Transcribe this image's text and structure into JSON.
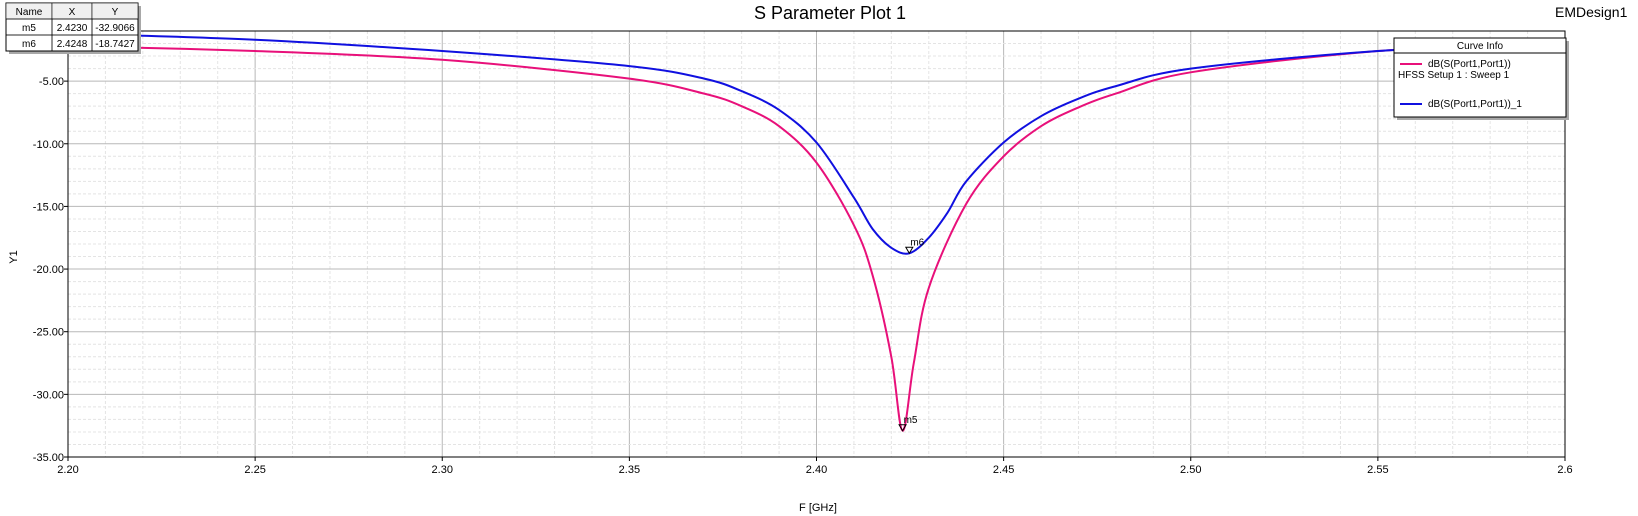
{
  "window": {
    "design_name": "EMDesign1"
  },
  "chart_data": {
    "type": "line",
    "title": "S Parameter Plot 1",
    "xlabel": "F [GHz]",
    "ylabel": "Y1",
    "xlim": [
      2.2,
      2.6
    ],
    "ylim": [
      -35.0,
      -1.0
    ],
    "x_ticks": [
      "2.20",
      "2.25",
      "2.30",
      "2.35",
      "2.40",
      "2.45",
      "2.50",
      "2.55",
      "2.6"
    ],
    "y_ticks": [
      "-5.00",
      "-10.00",
      "-15.00",
      "-20.00",
      "-25.00",
      "-30.00",
      "-35.00"
    ],
    "grid": true,
    "legend": {
      "placement": "top-right",
      "title": "Curve Info",
      "entries": [
        {
          "label": "dB(S(Port1,Port1))",
          "sublabel": "HFSS Setup 1 : Sweep 1",
          "color": "#e8107a"
        },
        {
          "label": "dB(S(Port1,Port1))_1",
          "color": "#1010e0"
        }
      ]
    },
    "series": [
      {
        "name": "dB(S(Port1,Port1))",
        "color": "#e8107a",
        "x": [
          2.2,
          2.25,
          2.3,
          2.35,
          2.37,
          2.38,
          2.39,
          2.4,
          2.41,
          2.415,
          2.42,
          2.423,
          2.426,
          2.43,
          2.44,
          2.45,
          2.46,
          2.47,
          2.48,
          2.5,
          2.55,
          2.6
        ],
        "y": [
          -2.2,
          -2.6,
          -3.3,
          -4.8,
          -6.0,
          -7.0,
          -8.6,
          -11.5,
          -16.5,
          -20.5,
          -27.0,
          -32.9,
          -27.5,
          -21.5,
          -14.8,
          -11.0,
          -8.6,
          -7.1,
          -6.0,
          -4.3,
          -2.6,
          -1.9
        ]
      },
      {
        "name": "dB(S(Port1,Port1))_1",
        "color": "#1010e0",
        "x": [
          2.2,
          2.25,
          2.3,
          2.35,
          2.37,
          2.38,
          2.39,
          2.4,
          2.41,
          2.415,
          2.42,
          2.4248,
          2.43,
          2.435,
          2.44,
          2.45,
          2.46,
          2.47,
          2.48,
          2.5,
          2.55,
          2.6
        ],
        "y": [
          -1.2,
          -1.7,
          -2.6,
          -3.8,
          -4.8,
          -5.8,
          -7.3,
          -9.9,
          -14.3,
          -16.8,
          -18.3,
          -18.74,
          -17.5,
          -15.5,
          -13.0,
          -9.9,
          -7.8,
          -6.4,
          -5.4,
          -4.0,
          -2.6,
          -1.9
        ]
      }
    ],
    "markers": [
      {
        "name": "m5",
        "x": 2.423,
        "y": -32.9066,
        "x_text": "2.4230",
        "y_text": "-32.9066"
      },
      {
        "name": "m6",
        "x": 2.4248,
        "y": -18.7427,
        "x_text": "2.4248",
        "y_text": "-18.7427"
      }
    ],
    "marker_table": {
      "headers": [
        "Name",
        "X",
        "Y"
      ]
    }
  }
}
